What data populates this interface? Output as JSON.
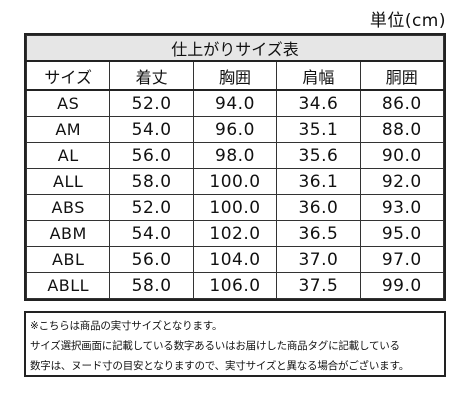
{
  "unit_label": "単位(cm)",
  "table": {
    "caption": "仕上がりサイズ表",
    "headers": [
      "サイズ",
      "着丈",
      "胸囲",
      "肩幅",
      "胴囲"
    ],
    "rows": [
      [
        "AS",
        "52.0",
        "94.0",
        "34.6",
        "86.0"
      ],
      [
        "AM",
        "54.0",
        "96.0",
        "35.1",
        "88.0"
      ],
      [
        "AL",
        "56.0",
        "98.0",
        "35.6",
        "90.0"
      ],
      [
        "ALL",
        "58.0",
        "100.0",
        "36.1",
        "92.0"
      ],
      [
        "ABS",
        "52.0",
        "100.0",
        "36.0",
        "93.0"
      ],
      [
        "ABM",
        "54.0",
        "102.0",
        "36.5",
        "95.0"
      ],
      [
        "ABL",
        "56.0",
        "104.0",
        "37.0",
        "97.0"
      ],
      [
        "ABLL",
        "58.0",
        "106.0",
        "37.5",
        "99.0"
      ]
    ]
  },
  "notes": [
    "※こちらは商品の実寸サイズとなります。",
    "サイズ選択画面に記載している数字あるいはお届けした商品タグに記載している",
    "数字は、ヌード寸の目安となりますので、実寸サイズと異なる場合がございます。"
  ]
}
